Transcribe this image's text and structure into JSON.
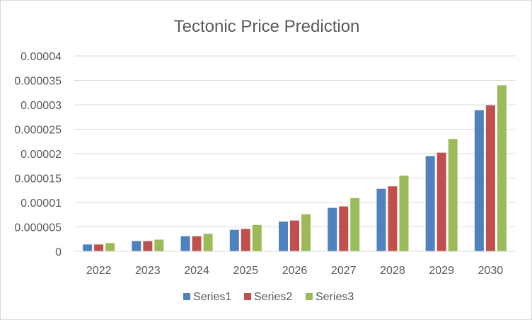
{
  "chart_data": {
    "type": "bar",
    "title": "Tectonic Price Prediction",
    "categories": [
      "2022",
      "2023",
      "2024",
      "2025",
      "2026",
      "2027",
      "2028",
      "2029",
      "2030"
    ],
    "series": [
      {
        "name": "Series1",
        "color": "#4f81bd",
        "values": [
          1.4e-06,
          2.1e-06,
          3.1e-06,
          4.4e-06,
          6.1e-06,
          8.9e-06,
          1.28e-05,
          1.95e-05,
          2.89e-05
        ]
      },
      {
        "name": "Series2",
        "color": "#c0504d",
        "values": [
          1.4e-06,
          2.1e-06,
          3.1e-06,
          4.6e-06,
          6.3e-06,
          9.2e-06,
          1.33e-05,
          2.02e-05,
          2.99e-05
        ]
      },
      {
        "name": "Series3",
        "color": "#9bbb59",
        "values": [
          1.7e-06,
          2.4e-06,
          3.6e-06,
          5.4e-06,
          7.6e-06,
          1.09e-05,
          1.55e-05,
          2.3e-05,
          3.4e-05
        ]
      }
    ],
    "ylim": [
      0,
      4e-05
    ],
    "yticks": [
      "0",
      "0.000005",
      "0.00001",
      "0.000015",
      "0.00002",
      "0.000025",
      "0.00003",
      "0.000035",
      "0.00004"
    ],
    "grid": true,
    "legend_position": "bottom"
  }
}
